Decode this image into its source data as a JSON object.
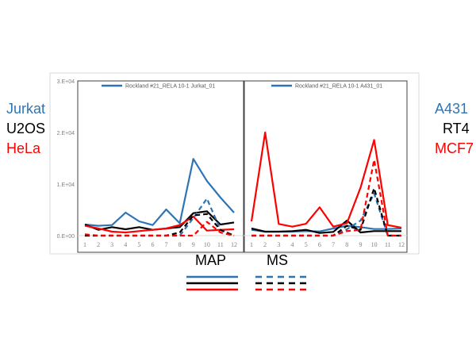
{
  "left_labels": [
    {
      "text": "Jurkat",
      "color": "#2e74b5"
    },
    {
      "text": "U2OS",
      "color": "#000000"
    },
    {
      "text": "HeLa",
      "color": "#ff0000"
    }
  ],
  "right_labels": [
    {
      "text": "A431",
      "color": "#2e74b5"
    },
    {
      "text": "RT4",
      "color": "#000000"
    },
    {
      "text": "MCF7",
      "color": "#ff0000"
    }
  ],
  "key": {
    "solid_label": "MAP",
    "dashed_label": "MS"
  },
  "colors": {
    "blue": "#2e74b5",
    "black": "#000000",
    "red": "#ff0000"
  },
  "chart_data": [
    {
      "type": "line",
      "legend": "Rockland #21_RELA 10-1 Jurkat_01",
      "legend_placement": "top",
      "x": [
        1,
        2,
        3,
        4,
        5,
        6,
        7,
        8,
        9,
        10,
        11,
        12
      ],
      "ylim": [
        0,
        30000
      ],
      "yticks": [
        "0.E+00",
        "1.E+04",
        "2.E+04",
        "3.E+04"
      ],
      "series": [
        {
          "color": "#2e74b5",
          "style": "solid",
          "values": [
            2150,
            1900,
            2050,
            4460,
            2770,
            2050,
            5080,
            2400,
            14870,
            10600,
            7380,
            4460
          ]
        },
        {
          "color": "#000000",
          "style": "solid",
          "values": [
            2150,
            1130,
            1640,
            1230,
            1640,
            1130,
            1380,
            1640,
            4360,
            4720,
            2150,
            2560
          ]
        },
        {
          "color": "#ff0000",
          "style": "solid",
          "values": [
            1900,
            1380,
            770,
            620,
            870,
            1130,
            1380,
            2050,
            3690,
            970,
            1130,
            1230
          ]
        },
        {
          "color": "#2e74b5",
          "style": "dashed",
          "values": [
            0,
            0,
            0,
            0,
            0,
            0,
            0,
            0,
            3400,
            7180,
            1130,
            0
          ]
        },
        {
          "color": "#000000",
          "style": "dashed",
          "values": [
            0,
            0,
            0,
            0,
            0,
            0,
            0,
            600,
            3900,
            4200,
            1100,
            0
          ]
        },
        {
          "color": "#ff0000",
          "style": "dashed",
          "values": [
            250,
            0,
            0,
            0,
            0,
            0,
            0,
            0,
            0,
            2670,
            600,
            0
          ]
        }
      ]
    },
    {
      "type": "line",
      "legend": "Rockland #21_RELA 10-1 A431_01",
      "legend_placement": "top",
      "x": [
        1,
        2,
        3,
        4,
        5,
        6,
        7,
        8,
        9,
        10,
        11,
        12
      ],
      "ylim": [
        0,
        30000
      ],
      "series": [
        {
          "color": "#2e74b5",
          "style": "solid",
          "values": [
            1130,
            770,
            770,
            770,
            870,
            820,
            1380,
            1900,
            1640,
            1280,
            1280,
            1380
          ]
        },
        {
          "color": "#000000",
          "style": "solid",
          "values": [
            1380,
            770,
            770,
            870,
            1130,
            510,
            720,
            2920,
            620,
            870,
            870,
            870
          ]
        },
        {
          "color": "#ff0000",
          "style": "solid",
          "values": [
            2770,
            20000,
            2260,
            1740,
            2300,
            5490,
            1740,
            2410,
            9330,
            18560,
            2050,
            1540
          ]
        },
        {
          "color": "#2e74b5",
          "style": "dashed",
          "values": [
            0,
            0,
            0,
            0,
            0,
            0,
            0,
            1230,
            2920,
            8200,
            0,
            0
          ]
        },
        {
          "color": "#000000",
          "style": "dashed",
          "values": [
            0,
            0,
            0,
            0,
            0,
            0,
            0,
            1900,
            1130,
            9180,
            0,
            0
          ]
        },
        {
          "color": "#ff0000",
          "style": "dashed",
          "values": [
            0,
            0,
            0,
            0,
            0,
            0,
            0,
            870,
            1130,
            14700,
            0,
            0
          ]
        }
      ]
    }
  ]
}
